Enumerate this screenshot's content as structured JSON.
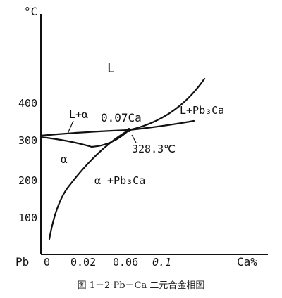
{
  "axes": {
    "y_unit": "°C",
    "x_origin": "Pb",
    "x_unit": "Ca%",
    "y_ticks": [
      "400",
      "300",
      "200",
      "100"
    ],
    "x_ticks": [
      "0",
      "0.02",
      "0.06",
      "0.1"
    ]
  },
  "regions": {
    "liquid": "L",
    "liquid_alpha": "L+α",
    "alpha": "α",
    "alpha_pb3ca": "α +Pb₃Ca",
    "liquid_pb3ca": "L+Pb₃Ca"
  },
  "annotations": {
    "composition": "0.07Ca",
    "peritectic_temp": "328.3℃"
  },
  "caption": "图 1－2 Pb－Ca 二元合金相图"
}
